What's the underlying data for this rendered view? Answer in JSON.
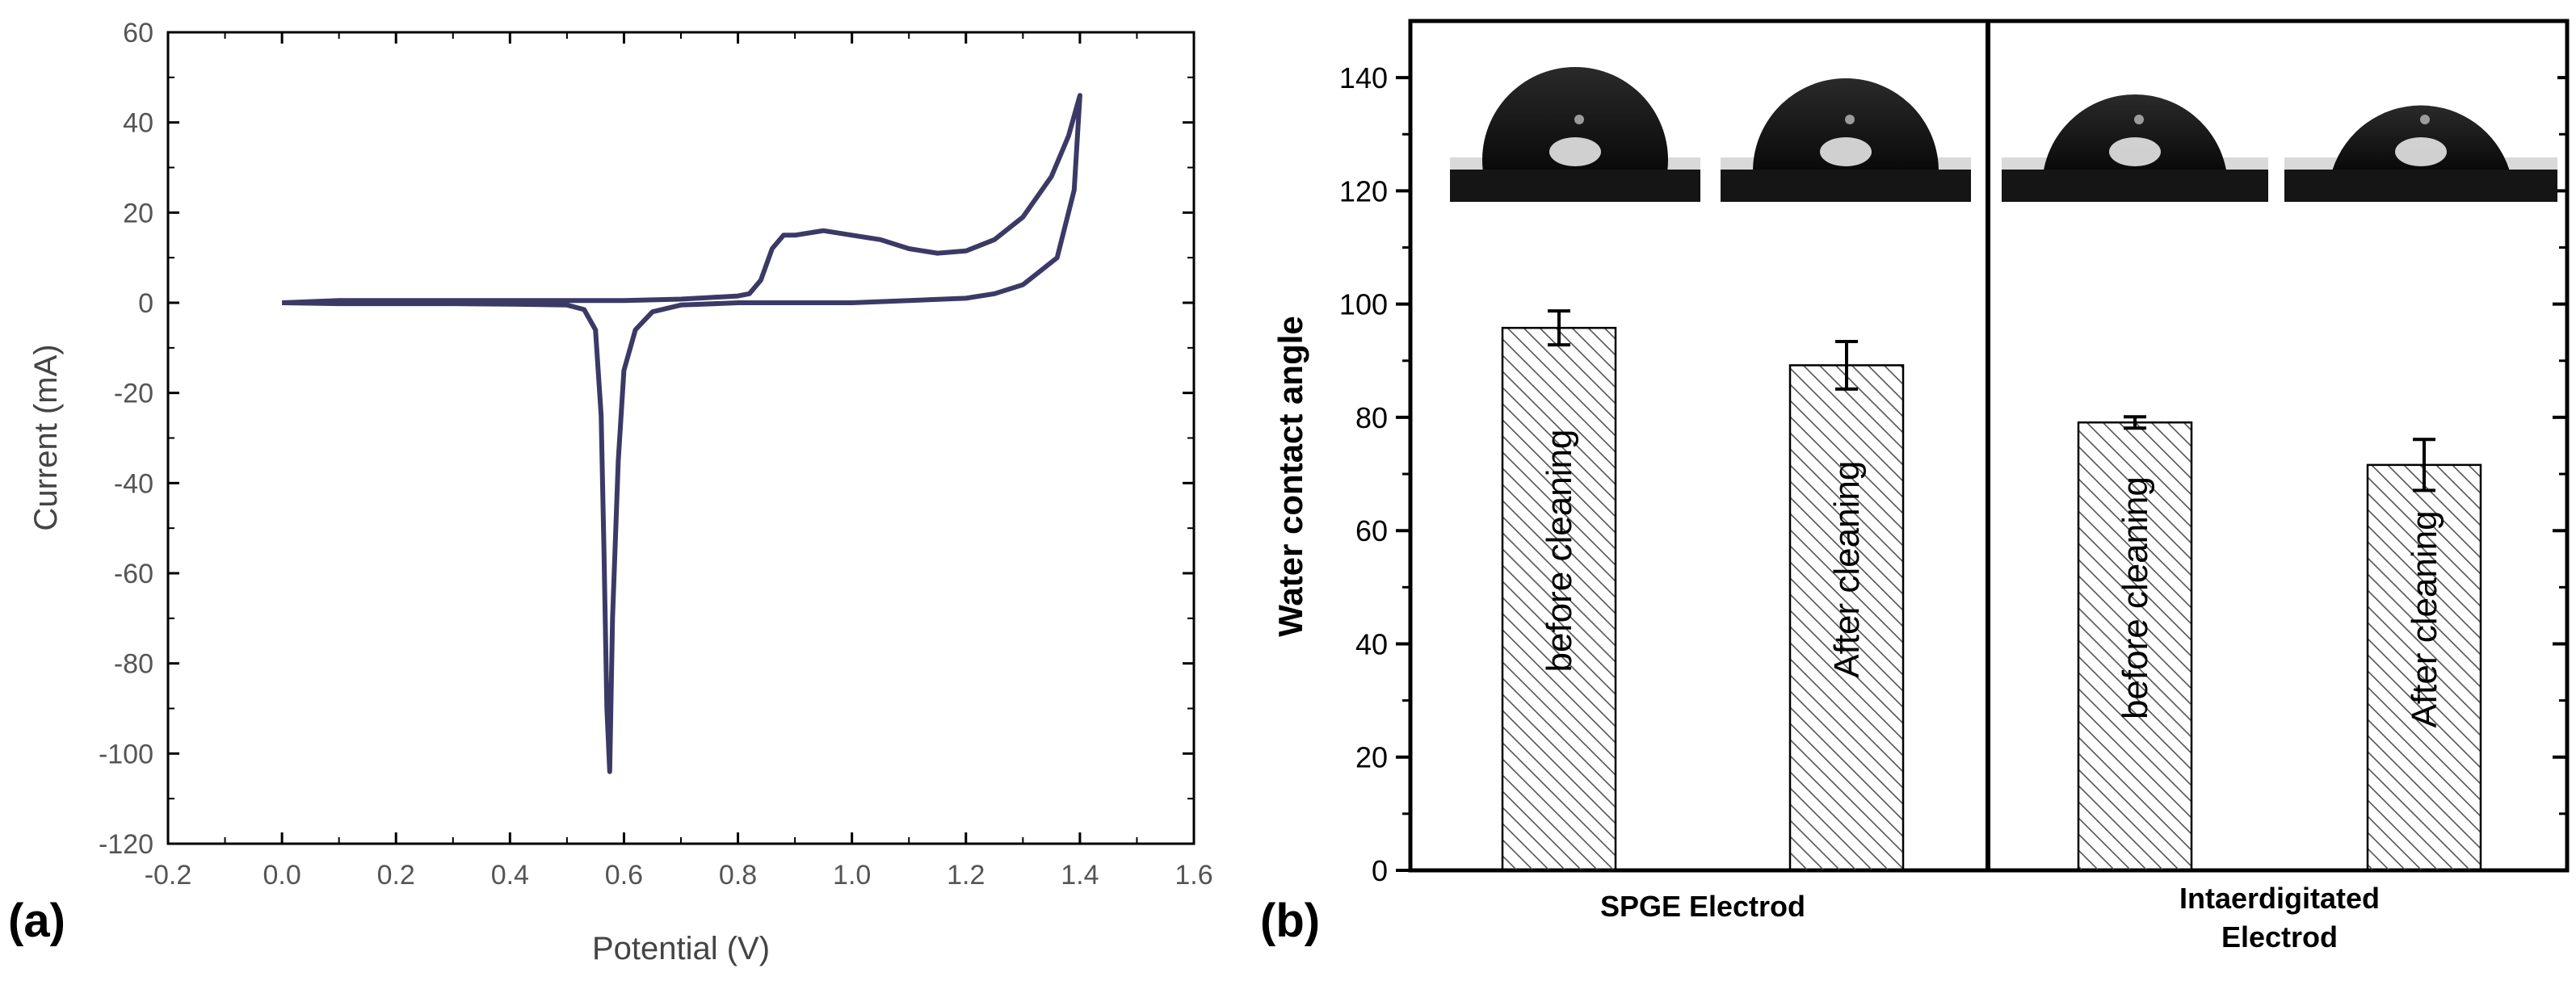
{
  "panel_labels": {
    "a": "(a)",
    "b": "(b)"
  },
  "colors": {
    "cv_curve": "#3b3a66",
    "axis": "#000000",
    "bar_fill": "#ffffff",
    "hatch": "#555555",
    "droplet": "#111111"
  },
  "chart_data": [
    {
      "id": "cv",
      "type": "line",
      "title": "",
      "xlabel": "Potential (V)",
      "ylabel": "Current (mA)",
      "xlim": [
        -0.2,
        1.6
      ],
      "ylim": [
        -120,
        60
      ],
      "xticks": [
        -0.2,
        0.0,
        0.2,
        0.4,
        0.6,
        0.8,
        1.0,
        1.2,
        1.4,
        1.6
      ],
      "xtick_labels": [
        "-0.2",
        "0.0",
        "0.2",
        "0.4",
        "0.6",
        "0.8",
        "1.0",
        "1.2",
        "1.4",
        "1.6"
      ],
      "yticks": [
        -120,
        -100,
        -80,
        -60,
        -40,
        -20,
        0,
        20,
        40,
        60
      ],
      "ytick_labels": [
        "-120",
        "-100",
        "-80",
        "-60",
        "-40",
        "-20",
        "0",
        "20",
        "40",
        "60"
      ],
      "grid": false,
      "series": [
        {
          "x": [
            0.0,
            0.1,
            0.2,
            0.3,
            0.4,
            0.5,
            0.6,
            0.7,
            0.8,
            0.82,
            0.84,
            0.86,
            0.88,
            0.9,
            0.95,
            1.0,
            1.05,
            1.1,
            1.15,
            1.2,
            1.25,
            1.3,
            1.35,
            1.38,
            1.4,
            1.39,
            1.36,
            1.3,
            1.25,
            1.2,
            1.1,
            1.0,
            0.9,
            0.8,
            0.7,
            0.65,
            0.62,
            0.6,
            0.59,
            0.58,
            0.575,
            0.57,
            0.565,
            0.56,
            0.55,
            0.53,
            0.5,
            0.4,
            0.3,
            0.2,
            0.1,
            0.0
          ],
          "y": [
            0,
            0.5,
            0.5,
            0.5,
            0.5,
            0.5,
            0.5,
            0.8,
            1.5,
            2,
            5,
            12,
            15,
            15,
            16,
            15,
            14,
            12,
            11,
            11.5,
            14,
            19,
            28,
            37,
            46,
            25,
            10,
            4,
            2,
            1,
            0.5,
            0,
            0,
            0,
            -0.5,
            -2,
            -6,
            -15,
            -35,
            -70,
            -104,
            -90,
            -55,
            -25,
            -6,
            -1.5,
            -0.5,
            -0.3,
            -0.2,
            -0.2,
            -0.2,
            0
          ]
        }
      ]
    },
    {
      "id": "contact-angle",
      "type": "bar",
      "title": "",
      "xlabel": "",
      "ylabel": "Water contact angle",
      "ylim": [
        0,
        150
      ],
      "yticks": [
        0,
        20,
        40,
        60,
        80,
        100,
        120,
        140
      ],
      "ytick_labels": [
        "0",
        "20",
        "40",
        "60",
        "80",
        "100",
        "120",
        "140"
      ],
      "grid": false,
      "groups": [
        "SPGE Electrod",
        "Intaerdigitated Electrod"
      ],
      "categories": [
        "before cleaning",
        "After cleaning",
        "before cleaning",
        "After cleaning"
      ],
      "group_of_category": [
        0,
        0,
        1,
        1
      ],
      "values": [
        95.8,
        89.2,
        79.1,
        71.6
      ],
      "errors": [
        3.0,
        4.2,
        1.0,
        4.5
      ],
      "droplet_contact_angles": [
        96,
        89,
        79,
        72
      ]
    }
  ]
}
